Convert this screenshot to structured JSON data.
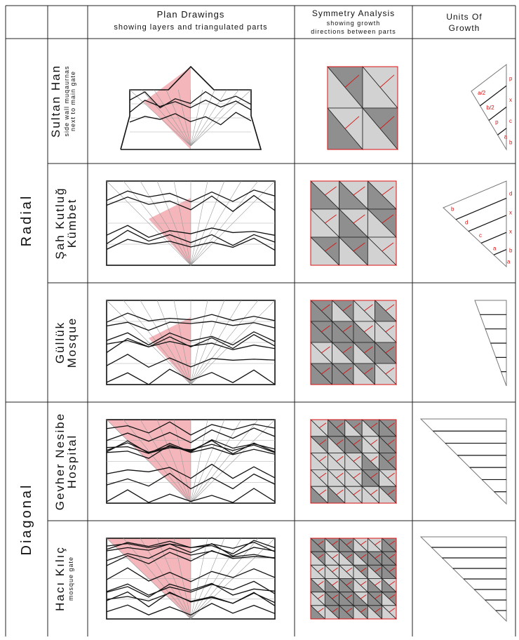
{
  "header": {
    "plan_title": "Plan Drawings",
    "plan_subtitle": "showing layers and triangulated parts",
    "symmetry_title": "Symmetry Analysis",
    "symmetry_subtitle_1": "showing growth",
    "symmetry_subtitle_2": "directions between parts",
    "units_title_1": "Units Of",
    "units_title_2": "Growth"
  },
  "groups": [
    "Radial",
    "Diagonal"
  ],
  "rows": [
    {
      "name": [
        "Sultan Han"
      ],
      "note": [
        "side wall muqaurnas",
        "next to main gate"
      ],
      "unit_labels": [
        "a/2",
        "p",
        "b/2",
        "x",
        "p",
        "c",
        "a",
        "b"
      ]
    },
    {
      "name": [
        "Şah Kutluğ",
        "Kümbet"
      ],
      "note": [],
      "unit_labels": [
        "b",
        "d",
        "d",
        "x",
        "c",
        "x",
        "a",
        "b",
        "a"
      ]
    },
    {
      "name": [
        "Güllük",
        "Mosque"
      ],
      "note": [],
      "unit_labels": []
    },
    {
      "name": [
        "Gevher Nesibe",
        "Hospital"
      ],
      "note": [],
      "unit_labels": []
    },
    {
      "name": [
        "Hacı Kılıç"
      ],
      "note": [
        "mosque gate"
      ],
      "unit_labels": []
    }
  ]
}
